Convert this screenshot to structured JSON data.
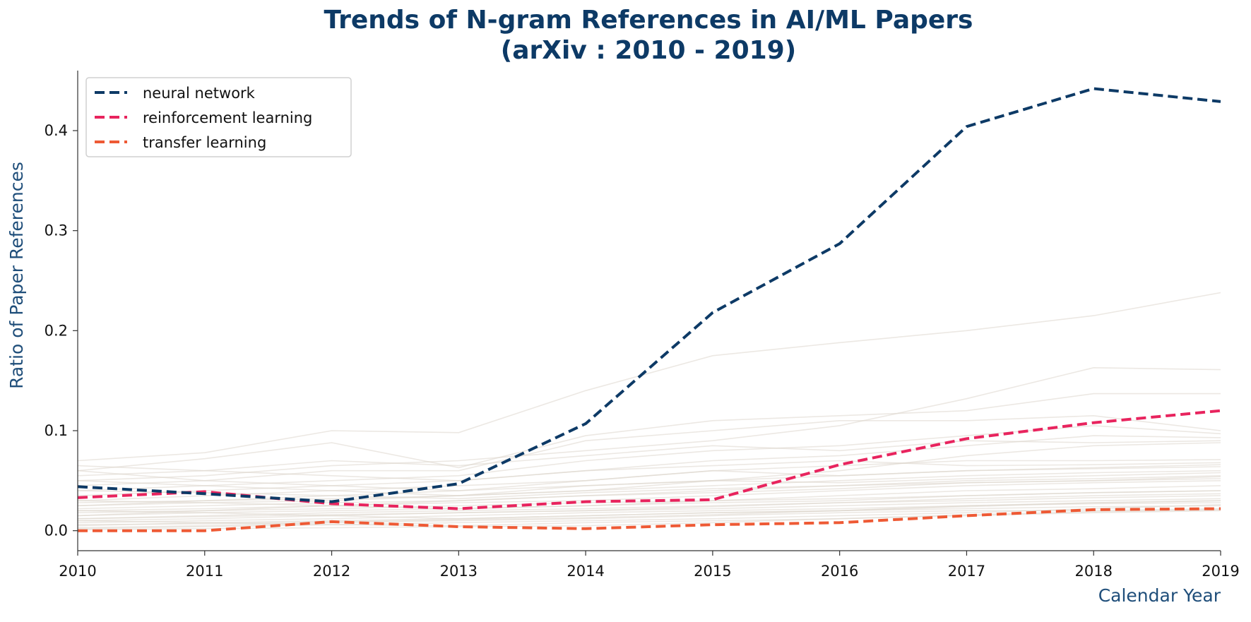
{
  "chart_data": {
    "type": "line",
    "title_lines": [
      "Trends of N-gram References in AI/ML Papers",
      "(arXiv : 2010 - 2019)"
    ],
    "xlabel": "Calendar Year",
    "ylabel": "Ratio of Paper References",
    "x": [
      2010,
      2011,
      2012,
      2013,
      2014,
      2015,
      2016,
      2017,
      2018,
      2019
    ],
    "x_tick_labels": [
      "2010",
      "2011",
      "2012",
      "2013",
      "2014",
      "2015",
      "2016",
      "2017",
      "2018",
      "2019"
    ],
    "y_ticks": [
      0.0,
      0.1,
      0.2,
      0.3,
      0.4
    ],
    "y_tick_labels": [
      "0.0",
      "0.1",
      "0.2",
      "0.3",
      "0.4"
    ],
    "xlim": [
      2010,
      2019
    ],
    "ylim": [
      -0.02,
      0.46
    ],
    "grid": false,
    "legend_position": "top-left",
    "series": [
      {
        "name": "neural network",
        "color": "#0d3a66",
        "style": "dashed",
        "values": [
          0.044,
          0.037,
          0.029,
          0.047,
          0.107,
          0.218,
          0.287,
          0.404,
          0.442,
          0.429
        ]
      },
      {
        "name": "reinforcement learning",
        "color": "#e8245e",
        "style": "dashed",
        "values": [
          0.033,
          0.039,
          0.027,
          0.022,
          0.029,
          0.031,
          0.066,
          0.092,
          0.108,
          0.12
        ]
      },
      {
        "name": "transfer learning",
        "color": "#ee5a35",
        "style": "dashed",
        "values": [
          0.0,
          0.0,
          0.009,
          0.004,
          0.002,
          0.006,
          0.008,
          0.015,
          0.021,
          0.022
        ]
      }
    ],
    "background_series_color": "#ddd6cc",
    "background_series": [
      [
        0.07,
        0.078,
        0.1,
        0.098,
        0.14,
        0.175,
        0.188,
        0.2,
        0.215,
        0.238
      ],
      [
        0.06,
        0.072,
        0.088,
        0.063,
        0.095,
        0.11,
        0.115,
        0.12,
        0.137,
        0.137
      ],
      [
        0.05,
        0.055,
        0.065,
        0.07,
        0.08,
        0.09,
        0.105,
        0.132,
        0.163,
        0.161
      ],
      [
        0.045,
        0.05,
        0.06,
        0.06,
        0.09,
        0.1,
        0.11,
        0.11,
        0.115,
        0.1
      ],
      [
        0.04,
        0.045,
        0.05,
        0.055,
        0.07,
        0.08,
        0.085,
        0.095,
        0.105,
        0.097
      ],
      [
        0.035,
        0.04,
        0.045,
        0.05,
        0.06,
        0.07,
        0.075,
        0.085,
        0.095,
        0.093
      ],
      [
        0.03,
        0.035,
        0.04,
        0.045,
        0.05,
        0.06,
        0.065,
        0.07,
        0.07,
        0.071
      ],
      [
        0.028,
        0.03,
        0.035,
        0.04,
        0.045,
        0.05,
        0.055,
        0.06,
        0.063,
        0.066
      ],
      [
        0.025,
        0.028,
        0.03,
        0.035,
        0.04,
        0.045,
        0.05,
        0.055,
        0.058,
        0.06
      ],
      [
        0.022,
        0.025,
        0.028,
        0.03,
        0.035,
        0.04,
        0.045,
        0.05,
        0.052,
        0.055
      ],
      [
        0.02,
        0.022,
        0.025,
        0.028,
        0.03,
        0.035,
        0.04,
        0.045,
        0.048,
        0.05
      ],
      [
        0.018,
        0.02,
        0.022,
        0.025,
        0.028,
        0.03,
        0.035,
        0.04,
        0.042,
        0.045
      ],
      [
        0.015,
        0.018,
        0.02,
        0.022,
        0.025,
        0.028,
        0.03,
        0.035,
        0.038,
        0.04
      ],
      [
        0.012,
        0.015,
        0.018,
        0.02,
        0.022,
        0.025,
        0.028,
        0.03,
        0.033,
        0.035
      ],
      [
        0.01,
        0.012,
        0.015,
        0.018,
        0.02,
        0.022,
        0.025,
        0.028,
        0.03,
        0.032
      ],
      [
        0.008,
        0.01,
        0.012,
        0.015,
        0.018,
        0.02,
        0.022,
        0.025,
        0.027,
        0.028
      ],
      [
        0.005,
        0.008,
        0.01,
        0.012,
        0.015,
        0.018,
        0.02,
        0.022,
        0.024,
        0.025
      ],
      [
        0.003,
        0.005,
        0.008,
        0.01,
        0.012,
        0.015,
        0.018,
        0.02,
        0.02,
        0.022
      ],
      [
        0.06,
        0.05,
        0.045,
        0.04,
        0.05,
        0.06,
        0.055,
        0.06,
        0.062,
        0.064
      ],
      [
        0.05,
        0.045,
        0.04,
        0.035,
        0.045,
        0.05,
        0.048,
        0.052,
        0.055,
        0.058
      ],
      [
        0.04,
        0.038,
        0.035,
        0.032,
        0.038,
        0.042,
        0.045,
        0.048,
        0.05,
        0.052
      ],
      [
        0.055,
        0.06,
        0.07,
        0.065,
        0.075,
        0.085,
        0.08,
        0.09,
        0.088,
        0.09
      ],
      [
        0.065,
        0.06,
        0.055,
        0.05,
        0.06,
        0.065,
        0.07,
        0.065,
        0.066,
        0.068
      ],
      [
        0.03,
        0.028,
        0.025,
        0.022,
        0.025,
        0.03,
        0.032,
        0.035,
        0.038,
        0.04
      ],
      [
        0.02,
        0.018,
        0.015,
        0.012,
        0.015,
        0.018,
        0.02,
        0.025,
        0.028,
        0.03
      ],
      [
        0.01,
        0.008,
        0.006,
        0.005,
        0.008,
        0.01,
        0.012,
        0.015,
        0.018,
        0.02
      ],
      [
        0.002,
        0.004,
        0.006,
        0.008,
        0.01,
        0.012,
        0.015,
        0.018,
        0.022,
        0.026
      ],
      [
        0.015,
        0.02,
        0.025,
        0.03,
        0.035,
        0.038,
        0.042,
        0.048,
        0.05,
        0.054
      ],
      [
        0.025,
        0.03,
        0.032,
        0.035,
        0.04,
        0.05,
        0.06,
        0.075,
        0.085,
        0.088
      ],
      [
        0.012,
        0.014,
        0.016,
        0.018,
        0.02,
        0.024,
        0.028,
        0.032,
        0.035,
        0.037
      ],
      [
        0.006,
        0.007,
        0.009,
        0.011,
        0.013,
        0.016,
        0.02,
        0.024,
        0.028,
        0.03
      ],
      [
        0.001,
        0.002,
        0.003,
        0.004,
        0.005,
        0.008,
        0.012,
        0.016,
        0.019,
        0.021
      ]
    ]
  }
}
